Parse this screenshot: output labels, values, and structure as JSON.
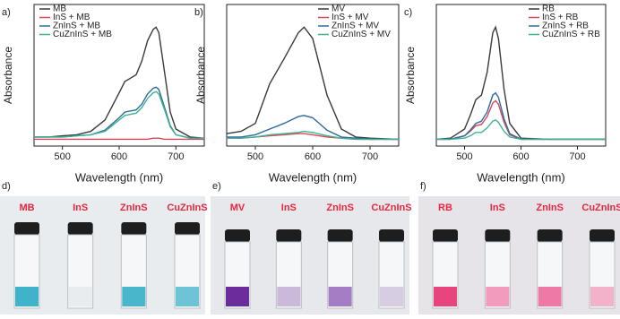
{
  "chart_data": [
    {
      "type": "line",
      "label": "a)",
      "xlabel": "Wavelength (nm)",
      "ylabel": "Absorbance",
      "legend": "upper left",
      "xlim": [
        450,
        750
      ],
      "xticks": [
        500,
        600,
        700
      ],
      "ylim": [
        -0.05,
        1.2
      ],
      "x": [
        450,
        475,
        500,
        525,
        550,
        575,
        600,
        610,
        620,
        630,
        640,
        650,
        660,
        665,
        670,
        680,
        690,
        700,
        725,
        750
      ],
      "series": [
        {
          "name": "MB",
          "color": "#3a3a3a",
          "values": [
            0.03,
            0.03,
            0.04,
            0.05,
            0.08,
            0.18,
            0.42,
            0.52,
            0.55,
            0.58,
            0.7,
            0.88,
            0.98,
            1.0,
            0.95,
            0.6,
            0.25,
            0.1,
            0.03,
            0.02
          ]
        },
        {
          "name": "InS + MB",
          "color": "#d9475a",
          "values": [
            0.01,
            0.01,
            0.01,
            0.01,
            0.01,
            0.01,
            0.01,
            0.01,
            0.01,
            0.01,
            0.01,
            0.01,
            0.02,
            0.02,
            0.02,
            0.01,
            0.01,
            0.01,
            0.01,
            0.01
          ]
        },
        {
          "name": "ZnInS + MB",
          "color": "#2e6b9e",
          "values": [
            0.03,
            0.03,
            0.03,
            0.04,
            0.05,
            0.09,
            0.2,
            0.25,
            0.26,
            0.27,
            0.32,
            0.41,
            0.46,
            0.47,
            0.45,
            0.29,
            0.13,
            0.05,
            0.02,
            0.02
          ]
        },
        {
          "name": "CuZnInS + MB",
          "color": "#3cb592",
          "values": [
            0.03,
            0.03,
            0.03,
            0.04,
            0.05,
            0.08,
            0.18,
            0.22,
            0.23,
            0.24,
            0.29,
            0.37,
            0.42,
            0.43,
            0.41,
            0.27,
            0.12,
            0.05,
            0.02,
            0.02
          ]
        }
      ]
    },
    {
      "type": "line",
      "label": "b)",
      "xlabel": "Wavelength (nm)",
      "ylabel": "Absorbance",
      "legend": "upper center",
      "xlim": [
        450,
        750
      ],
      "xticks": [
        500,
        600,
        700
      ],
      "ylim": [
        -0.05,
        1.2
      ],
      "x": [
        450,
        475,
        500,
        525,
        550,
        575,
        585,
        600,
        625,
        650,
        675,
        700,
        750
      ],
      "series": [
        {
          "name": "MV",
          "color": "#3a3a3a",
          "values": [
            0.06,
            0.08,
            0.15,
            0.5,
            0.72,
            0.95,
            1.0,
            0.9,
            0.4,
            0.1,
            0.03,
            0.02,
            0.01
          ]
        },
        {
          "name": "InS + MV",
          "color": "#d9475a",
          "values": [
            0.02,
            0.02,
            0.03,
            0.04,
            0.05,
            0.06,
            0.06,
            0.05,
            0.03,
            0.02,
            0.01,
            0.01,
            0.01
          ]
        },
        {
          "name": "ZnInS + MV",
          "color": "#2e6b9e",
          "values": [
            0.03,
            0.03,
            0.05,
            0.1,
            0.15,
            0.21,
            0.22,
            0.2,
            0.09,
            0.03,
            0.02,
            0.01,
            0.01
          ]
        },
        {
          "name": "CuZnInS + MV",
          "color": "#3cb592",
          "values": [
            0.02,
            0.02,
            0.03,
            0.05,
            0.06,
            0.07,
            0.08,
            0.07,
            0.04,
            0.02,
            0.01,
            0.01,
            0.01
          ]
        }
      ]
    },
    {
      "type": "line",
      "label": "c)",
      "xlabel": "Wavelength (nm)",
      "ylabel": "Absorbance",
      "legend": "upper right",
      "xlim": [
        450,
        750
      ],
      "xticks": [
        500,
        600,
        700
      ],
      "ylim": [
        -0.05,
        1.2
      ],
      "x": [
        450,
        475,
        500,
        510,
        520,
        530,
        540,
        550,
        555,
        560,
        570,
        580,
        600,
        650,
        700,
        750
      ],
      "series": [
        {
          "name": "RB",
          "color": "#3a3a3a",
          "values": [
            0.01,
            0.02,
            0.1,
            0.22,
            0.36,
            0.4,
            0.6,
            0.95,
            1.0,
            0.9,
            0.45,
            0.15,
            0.02,
            0.01,
            0.01,
            0.01
          ]
        },
        {
          "name": "InS + RB",
          "color": "#d9475a",
          "values": [
            0.01,
            0.01,
            0.04,
            0.08,
            0.13,
            0.14,
            0.21,
            0.33,
            0.35,
            0.32,
            0.16,
            0.05,
            0.01,
            0.01,
            0.01,
            0.01
          ]
        },
        {
          "name": "ZnInS + RB",
          "color": "#2e6b9e",
          "values": [
            0.01,
            0.01,
            0.04,
            0.09,
            0.15,
            0.17,
            0.25,
            0.4,
            0.42,
            0.38,
            0.19,
            0.06,
            0.01,
            0.01,
            0.01,
            0.01
          ]
        },
        {
          "name": "CuZnInS + RB",
          "color": "#3cb592",
          "values": [
            0.01,
            0.01,
            0.02,
            0.04,
            0.07,
            0.07,
            0.11,
            0.17,
            0.18,
            0.16,
            0.08,
            0.03,
            0.01,
            0.01,
            0.01,
            0.01
          ]
        }
      ]
    }
  ],
  "photos": [
    {
      "label": "d)",
      "vials": [
        "MB",
        "InS",
        "ZnInS",
        "CuZnInS"
      ]
    },
    {
      "label": "e)",
      "vials": [
        "MV",
        "InS",
        "ZnInS",
        "CuZnInS"
      ]
    },
    {
      "label": "f)",
      "vials": [
        "RB",
        "InS",
        "ZnInS",
        "CuZnInS"
      ]
    }
  ]
}
